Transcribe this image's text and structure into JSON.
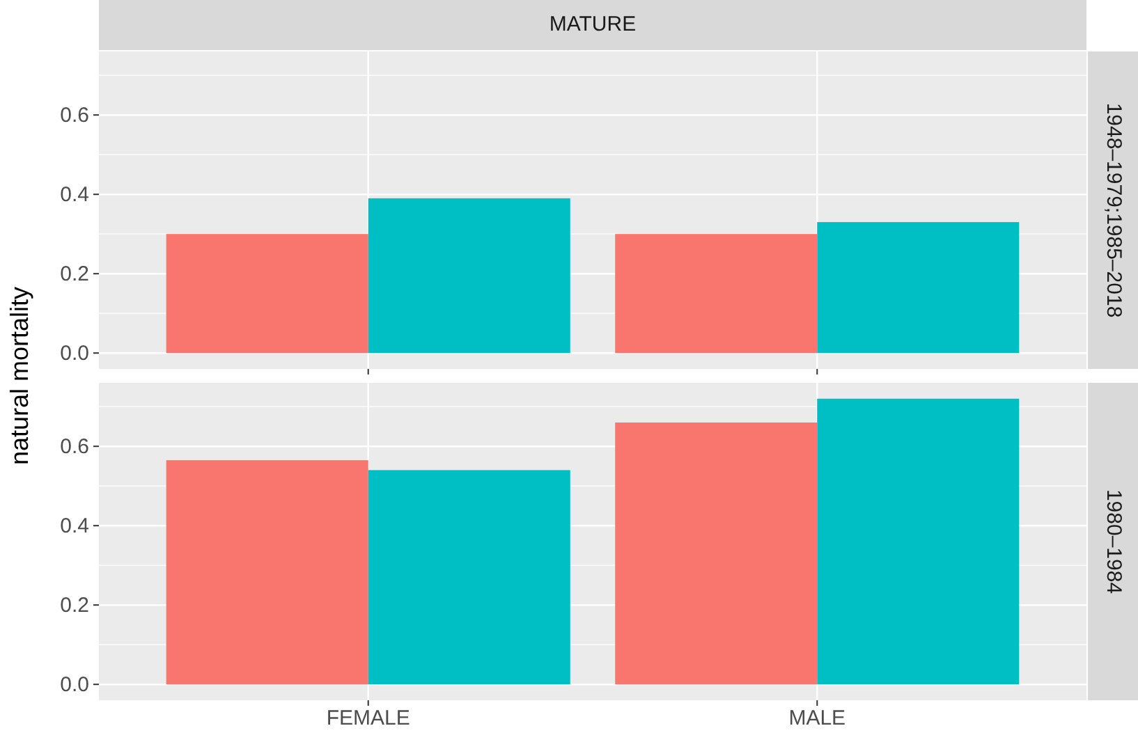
{
  "chart_data": [
    {
      "type": "bar",
      "title": "MATURE",
      "annotations": [
        "1948–1979;1985–2018"
      ],
      "ylabel": "natural mortality",
      "categories": [
        null,
        null
      ],
      "series": [
        {
          "color": "#f8766d",
          "values": [
            0.3,
            0.3
          ]
        },
        {
          "color": "#00bfc4",
          "values": [
            0.39,
            0.33
          ]
        }
      ],
      "ylim": [
        -0.04,
        0.76
      ],
      "yticks": [
        {
          "value": 0,
          "label": "0.0"
        },
        {
          "value": 0.2,
          "label": "0.2"
        },
        {
          "value": 0.4,
          "label": "0.4"
        },
        {
          "value": 0.6,
          "label": "0.6"
        }
      ],
      "grid": true,
      "tick_labels": "y"
    },
    {
      "type": "bar",
      "annotations": [
        "1980–1984"
      ],
      "categories": [
        "FEMALE",
        "MALE"
      ],
      "series": [
        {
          "color": "#f8766d",
          "values": [
            0.565,
            0.66
          ]
        },
        {
          "color": "#00bfc4",
          "values": [
            0.54,
            0.72
          ]
        }
      ],
      "ylim": [
        -0.04,
        0.76
      ],
      "yticks": [
        {
          "value": 0,
          "label": "0.0"
        },
        {
          "value": 0.2,
          "label": "0.2"
        },
        {
          "value": 0.4,
          "label": "0.4"
        },
        {
          "value": 0.6,
          "label": "0.6"
        }
      ],
      "grid": true
    }
  ]
}
